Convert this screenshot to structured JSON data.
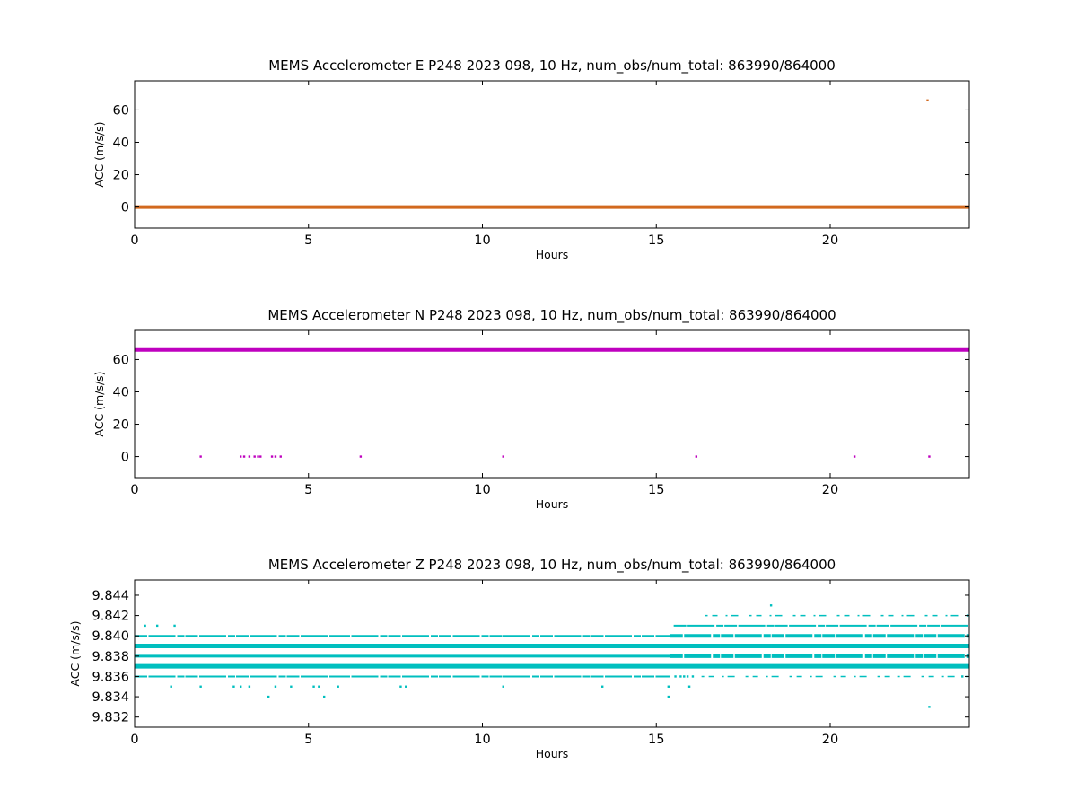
{
  "chart_data": [
    {
      "type": "scatter",
      "title": "MEMS Accelerometer E P248 2023 098, 10 Hz, num_obs/num_total: 863990/864000",
      "xlabel": "Hours",
      "ylabel": "ACC (m/s/s)",
      "xlim": [
        0,
        24
      ],
      "ylim": [
        -13,
        78
      ],
      "xticks": [
        0,
        5,
        10,
        15,
        20
      ],
      "yticks": [
        0,
        20,
        40,
        60
      ],
      "ytick_labels": [
        "0",
        "20",
        "40",
        "60"
      ],
      "color": "#d2691e",
      "grid": false,
      "bands": [
        {
          "y": 0,
          "x_start": 0,
          "x_end": 24,
          "weight": 4
        }
      ],
      "points": [
        {
          "x": 22.8,
          "y": 65.9
        }
      ]
    },
    {
      "type": "scatter",
      "title": "MEMS Accelerometer N P248 2023 098, 10 Hz, num_obs/num_total: 863990/864000",
      "xlabel": "Hours",
      "ylabel": "ACC (m/s/s)",
      "xlim": [
        0,
        24
      ],
      "ylim": [
        -13,
        78
      ],
      "xticks": [
        0,
        5,
        10,
        15,
        20
      ],
      "yticks": [
        0,
        20,
        40,
        60
      ],
      "ytick_labels": [
        "0",
        "20",
        "40",
        "60"
      ],
      "color": "#bf00bf",
      "grid": false,
      "bands": [
        {
          "y": 65.9,
          "x_start": 0,
          "x_end": 24,
          "weight": 4
        }
      ],
      "points": [
        {
          "x": 1.9,
          "y": 0
        },
        {
          "x": 3.05,
          "y": 0
        },
        {
          "x": 3.15,
          "y": 0
        },
        {
          "x": 3.3,
          "y": 0
        },
        {
          "x": 3.45,
          "y": 0
        },
        {
          "x": 3.55,
          "y": 0
        },
        {
          "x": 3.62,
          "y": 0
        },
        {
          "x": 3.95,
          "y": 0
        },
        {
          "x": 4.05,
          "y": 0
        },
        {
          "x": 4.2,
          "y": 0
        },
        {
          "x": 6.5,
          "y": 0
        },
        {
          "x": 10.6,
          "y": 0
        },
        {
          "x": 16.15,
          "y": 0
        },
        {
          "x": 20.7,
          "y": 0
        },
        {
          "x": 22.85,
          "y": 0
        }
      ]
    },
    {
      "type": "scatter",
      "title": "MEMS Accelerometer Z P248 2023 098, 10 Hz, num_obs/num_total: 863990/864000",
      "xlabel": "Hours",
      "ylabel": "ACC (m/s/s)",
      "xlim": [
        0,
        24
      ],
      "ylim": [
        9.831,
        9.8455
      ],
      "xticks": [
        0,
        5,
        10,
        15,
        20
      ],
      "yticks": [
        9.832,
        9.834,
        9.836,
        9.838,
        9.84,
        9.842,
        9.844
      ],
      "ytick_labels": [
        "9.832",
        "9.834",
        "9.836",
        "9.838",
        "9.840",
        "9.842",
        "9.844"
      ],
      "color": "#00bfbf",
      "grid": false,
      "bands": [
        {
          "y": 9.839,
          "x_start": 0,
          "x_end": 24,
          "weight": 5
        },
        {
          "y": 9.837,
          "x_start": 0,
          "x_end": 24,
          "weight": 5
        },
        {
          "y": 9.838,
          "x_start": 0,
          "x_end": 15.4,
          "weight": 3
        },
        {
          "y": 9.838,
          "x_start": 15.4,
          "x_end": 24,
          "weight": 4,
          "dotted": true
        },
        {
          "y": 9.84,
          "x_start": 0,
          "x_end": 15.4,
          "weight": 2,
          "dotted": true
        },
        {
          "y": 9.84,
          "x_start": 15.4,
          "x_end": 24,
          "weight": 4,
          "dotted": true
        },
        {
          "y": 9.836,
          "x_start": 0,
          "x_end": 15.4,
          "weight": 2,
          "dotted": true
        },
        {
          "y": 9.836,
          "x_start": 16.3,
          "x_end": 24,
          "weight": 1.5,
          "sparse": true
        },
        {
          "y": 9.837,
          "x_start": 15.4,
          "x_end": 24,
          "weight": 2,
          "dotted": true
        },
        {
          "y": 9.841,
          "x_start": 15.5,
          "x_end": 24,
          "weight": 2,
          "dotted": true
        },
        {
          "y": 9.842,
          "x_start": 16.4,
          "x_end": 24,
          "weight": 1.5,
          "sparse": true
        }
      ],
      "points": [
        {
          "x": 0.3,
          "y": 9.841
        },
        {
          "x": 0.65,
          "y": 9.841
        },
        {
          "x": 1.15,
          "y": 9.841
        },
        {
          "x": 1.05,
          "y": 9.835
        },
        {
          "x": 1.9,
          "y": 9.835
        },
        {
          "x": 2.85,
          "y": 9.835
        },
        {
          "x": 3.05,
          "y": 9.835
        },
        {
          "x": 3.3,
          "y": 9.835
        },
        {
          "x": 3.85,
          "y": 9.834
        },
        {
          "x": 4.05,
          "y": 9.835
        },
        {
          "x": 4.5,
          "y": 9.835
        },
        {
          "x": 5.15,
          "y": 9.835
        },
        {
          "x": 5.3,
          "y": 9.835
        },
        {
          "x": 5.45,
          "y": 9.834
        },
        {
          "x": 5.85,
          "y": 9.835
        },
        {
          "x": 7.65,
          "y": 9.835
        },
        {
          "x": 7.8,
          "y": 9.835
        },
        {
          "x": 10.6,
          "y": 9.835
        },
        {
          "x": 13.45,
          "y": 9.835
        },
        {
          "x": 15.35,
          "y": 9.835
        },
        {
          "x": 15.35,
          "y": 9.834
        },
        {
          "x": 15.95,
          "y": 9.835
        },
        {
          "x": 15.55,
          "y": 9.836
        },
        {
          "x": 15.7,
          "y": 9.836
        },
        {
          "x": 15.8,
          "y": 9.836
        },
        {
          "x": 15.9,
          "y": 9.836
        },
        {
          "x": 16.05,
          "y": 9.836
        },
        {
          "x": 18.3,
          "y": 9.843
        },
        {
          "x": 22.85,
          "y": 9.833
        },
        {
          "x": 23.95,
          "y": 9.842
        },
        {
          "x": 23.8,
          "y": 9.836
        }
      ]
    }
  ]
}
